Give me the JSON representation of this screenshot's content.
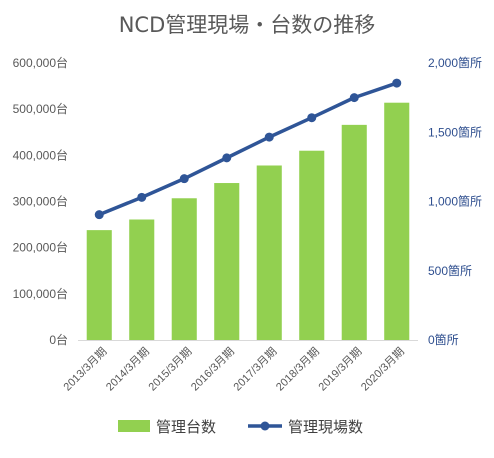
{
  "chart_data": {
    "type": "bar+line",
    "title": "NCD管理現場・台数の推移",
    "categories": [
      "2013/3月期",
      "2014/3月期",
      "2015/3月期",
      "2016/3月期",
      "2017/3月期",
      "2018/3月期",
      "2019/3月期",
      "2020/3月期"
    ],
    "series": [
      {
        "name": "管理台数",
        "type": "bar",
        "axis": "left",
        "color": "#92d050",
        "values": [
          238000,
          261000,
          307000,
          340000,
          378000,
          410000,
          466000,
          514000
        ]
      },
      {
        "name": "管理現場数",
        "type": "line",
        "axis": "right",
        "color": "#2f5597",
        "values": [
          905,
          1030,
          1165,
          1315,
          1465,
          1605,
          1750,
          1855
        ]
      }
    ],
    "left_axis": {
      "ylim": [
        0,
        600000
      ],
      "ticks": [
        0,
        100000,
        200000,
        300000,
        400000,
        500000,
        600000
      ],
      "tick_labels": [
        "0台",
        "100,000台",
        "200,000台",
        "300,000台",
        "400,000台",
        "500,000台",
        "600,000台"
      ]
    },
    "right_axis": {
      "ylim": [
        0,
        2000
      ],
      "ticks": [
        0,
        500,
        1000,
        1500,
        2000
      ],
      "tick_labels": [
        "0箇所",
        "500箇所",
        "1,000箇所",
        "1,500箇所",
        "2,000箇所"
      ]
    },
    "grid": false,
    "legend": "bottom"
  }
}
